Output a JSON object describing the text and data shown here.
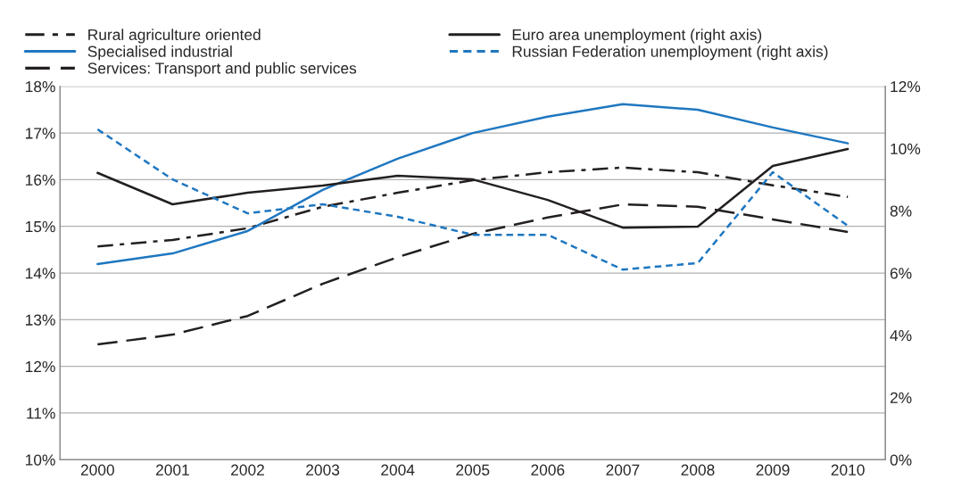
{
  "chart_data": {
    "type": "line",
    "categories": [
      "2000",
      "2001",
      "2002",
      "2003",
      "2004",
      "2005",
      "2006",
      "2007",
      "2008",
      "2009",
      "2010"
    ],
    "series": [
      {
        "name": "Rural agriculture oriented",
        "color": "#231f20",
        "line_style": "dashdot",
        "values": [
          14.57,
          14.71,
          14.96,
          15.42,
          15.72,
          15.99,
          16.16,
          16.26,
          16.16,
          15.88,
          15.63
        ]
      },
      {
        "name": "Specialised industrial",
        "color": "#1f77c0",
        "line_style": "solid",
        "values": [
          14.19,
          14.42,
          14.9,
          15.78,
          16.45,
          17.0,
          17.35,
          17.62,
          17.5,
          17.12,
          16.78
        ]
      },
      {
        "name": "Services: Transport and public services",
        "color": "#231f20",
        "line_style": "dashed",
        "values": [
          12.47,
          12.68,
          13.08,
          13.77,
          14.34,
          14.84,
          15.19,
          15.47,
          15.42,
          15.15,
          14.88
        ]
      },
      {
        "name": "Euro area unemployment (right axis)",
        "color": "#231f20",
        "line_style": "solid",
        "axis": "y2",
        "values": [
          9.22,
          8.21,
          8.58,
          8.81,
          9.13,
          9.01,
          8.35,
          7.46,
          7.49,
          9.44,
          9.99
        ]
      },
      {
        "name": "Russian Federation unemployment (right axis)",
        "color": "#1f77c0",
        "line_style": "dotted",
        "axis": "y2",
        "values": [
          10.62,
          9.01,
          7.92,
          8.21,
          7.81,
          7.23,
          7.23,
          6.11,
          6.32,
          9.24,
          7.52
        ]
      }
    ],
    "ylim": [
      10,
      18
    ],
    "yticks": [
      {
        "value": 10,
        "label": "10%"
      },
      {
        "value": 11,
        "label": "11%"
      },
      {
        "value": 12,
        "label": "12%"
      },
      {
        "value": 13,
        "label": "13%"
      },
      {
        "value": 14,
        "label": "14%"
      },
      {
        "value": 15,
        "label": "15%"
      },
      {
        "value": 16,
        "label": "16%"
      },
      {
        "value": 17,
        "label": "17%"
      },
      {
        "value": 18,
        "label": "18%"
      }
    ],
    "y2lim": [
      0,
      12
    ],
    "y2ticks": [
      {
        "value": 0,
        "label": "0%"
      },
      {
        "value": 2,
        "label": "2%"
      },
      {
        "value": 4,
        "label": "4%"
      },
      {
        "value": 6,
        "label": "6%"
      },
      {
        "value": 8,
        "label": "8%"
      },
      {
        "value": 10,
        "label": "10%"
      },
      {
        "value": 12,
        "label": "12%"
      }
    ],
    "grid": "y",
    "legend": "top",
    "marker": "none"
  }
}
